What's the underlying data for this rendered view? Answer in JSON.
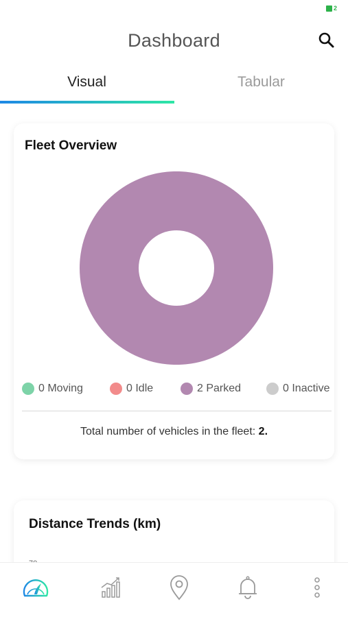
{
  "status_bar": {
    "battery_level": "2",
    "battery_color": "#2db24a"
  },
  "header": {
    "title": "Dashboard",
    "search_icon": "search-icon"
  },
  "tabs": [
    {
      "label": "Visual",
      "active": true
    },
    {
      "label": "Tabular",
      "active": false
    }
  ],
  "fleet_overview": {
    "title": "Fleet Overview",
    "legend": [
      {
        "count": "0",
        "label": "Moving",
        "text": "0 Moving",
        "color": "#7dd3a8"
      },
      {
        "count": "0",
        "label": "Idle",
        "text": "0 Idle",
        "color": "#f28b8b"
      },
      {
        "count": "2",
        "label": "Parked",
        "text": "2 Parked",
        "color": "#b288b0"
      },
      {
        "count": "0",
        "label": "Inactive",
        "text": "0 Inactive",
        "color": "#cccccc"
      }
    ],
    "total_label": "Total number of vehicles in the fleet:",
    "total_value": "2."
  },
  "chart_data": {
    "type": "pie",
    "categories": [
      "Moving",
      "Idle",
      "Parked",
      "Inactive"
    ],
    "values": [
      0,
      0,
      2,
      0
    ],
    "colors": [
      "#7dd3a8",
      "#f28b8b",
      "#b288b0",
      "#cccccc"
    ],
    "title": "Fleet Overview"
  },
  "distance_trends": {
    "title": "Distance Trends (km)",
    "first_tick": "70"
  },
  "bottom_nav": [
    {
      "icon": "speedometer-icon",
      "active": true
    },
    {
      "icon": "bar-chart-icon",
      "active": false
    },
    {
      "icon": "location-pin-icon",
      "active": false
    },
    {
      "icon": "bell-icon",
      "active": false
    },
    {
      "icon": "more-vertical-icon",
      "active": false
    }
  ]
}
